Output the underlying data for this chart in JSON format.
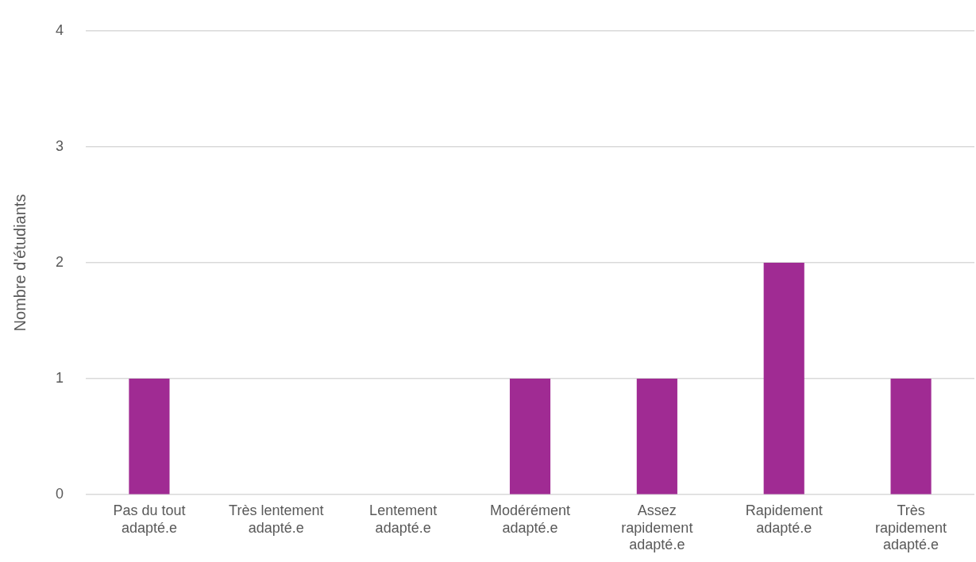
{
  "chart_data": {
    "type": "bar",
    "ylabel": "Nombre d'étudiants",
    "categories": [
      "Pas du tout adapté.e",
      "Très lentement adapté.e",
      "Lentement adapté.e",
      "Modérément adapté.e",
      "Assez rapidement adapté.e",
      "Rapidement adapté.e",
      "Très rapidement adapté.e"
    ],
    "values": [
      1,
      0,
      0,
      1,
      1,
      2,
      1
    ],
    "color": "#a02b93",
    "ylim": [
      0,
      4
    ],
    "yticks": [
      0,
      1,
      2,
      3,
      4
    ],
    "grid": "y",
    "legend": false
  }
}
